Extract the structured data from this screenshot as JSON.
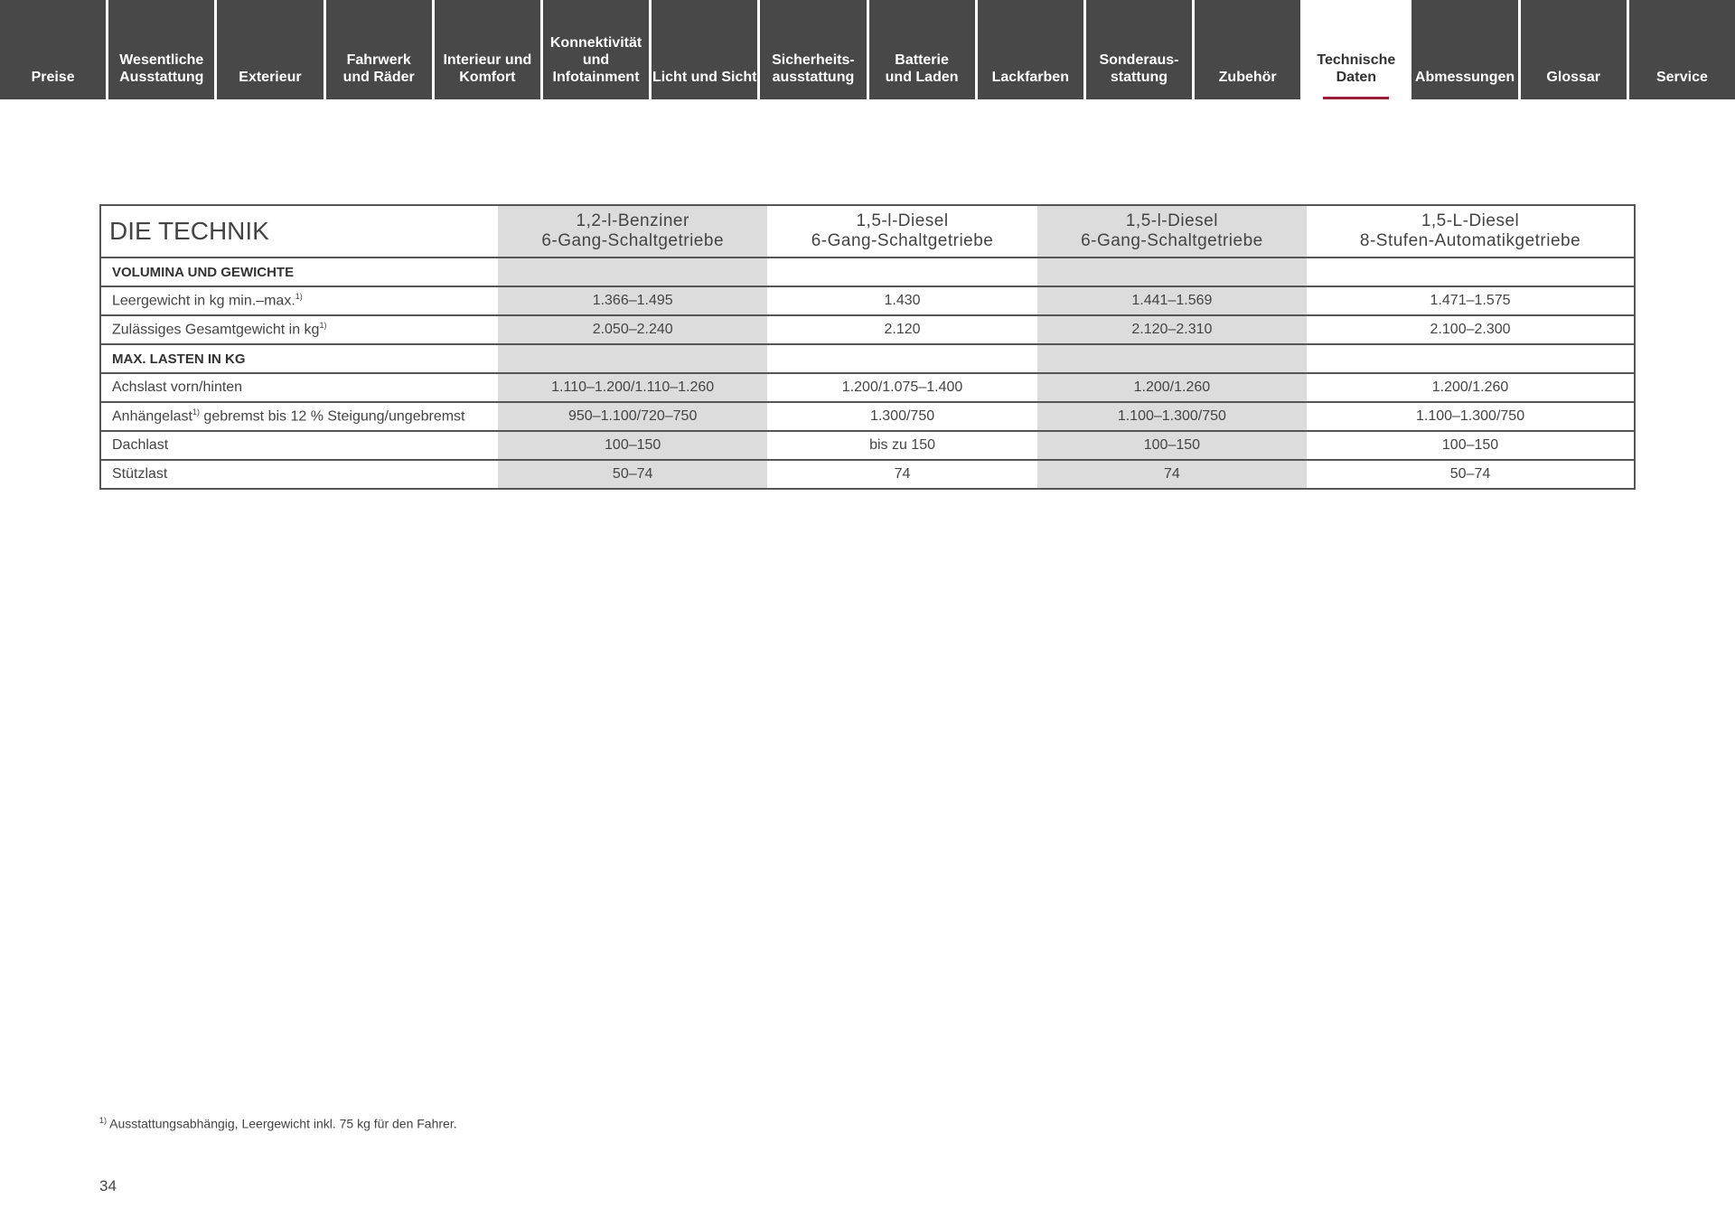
{
  "nav": {
    "tabs": [
      "Preise",
      "Wesentliche\nAusstattung",
      "Exterieur",
      "Fahrwerk\nund Räder",
      "Interieur und\nKomfort",
      "Konnektivität\nund\nInfotainment",
      "Licht und Sicht",
      "Sicherheits-\nausstattung",
      "Batterie\nund Laden",
      "Lackfarben",
      "Sonderaus-\nstattung",
      "Zubehör",
      "Technische\nDaten",
      "Abmessungen",
      "Glossar",
      "Service"
    ],
    "active": "Technische\nDaten",
    "accent": "#9b1c36"
  },
  "table": {
    "title": "DIE TECHNIK",
    "columns": [
      [
        "1,2-l-Benziner",
        "6-Gang-Schaltgetriebe"
      ],
      [
        "1,5-l-Diesel",
        "6-Gang-Schaltgetriebe"
      ],
      [
        "1,5-l-Diesel",
        "6-Gang-Schaltgetriebe"
      ],
      [
        "1,5-L-Diesel",
        "8-Stufen-Automatikgetriebe"
      ]
    ],
    "rows": [
      {
        "section": true,
        "label": "VOLUMINA UND GEWICHTE",
        "values": [
          "",
          "",
          "",
          ""
        ]
      },
      {
        "label": "Leergewicht in kg min.–max.",
        "sup": "1)",
        "values": [
          "1.366–1.495",
          "1.430",
          "1.441–1.569",
          "1.471–1.575"
        ]
      },
      {
        "label": "Zulässiges Gesamtgewicht in kg",
        "sup": "1)",
        "values": [
          "2.050–2.240",
          "2.120",
          "2.120–2.310",
          "2.100–2.300"
        ]
      },
      {
        "section": true,
        "label": "MAX. LASTEN IN KG",
        "values": [
          "",
          "",
          "",
          ""
        ]
      },
      {
        "label": "Achslast vorn/hinten",
        "values": [
          "1.110–1.200/1.110–1.260",
          "1.200/1.075–1.400",
          "1.200/1.260",
          "1.200/1.260"
        ]
      },
      {
        "label": "Anhängelast",
        "sup": "1)",
        "label_rest": " gebremst bis 12 % Steigung/ungebremst",
        "values": [
          "950–1.100/720–750",
          "1.300/750",
          "1.100–1.300/750",
          "1.100–1.300/750"
        ]
      },
      {
        "label": "Dachlast",
        "values": [
          "100–150",
          "bis zu 150",
          "100–150",
          "100–150"
        ]
      },
      {
        "label": "Stützlast",
        "values": [
          "50–74",
          "74",
          "74",
          "50–74"
        ]
      }
    ]
  },
  "footnote": {
    "sup": "1)",
    "text": " Ausstattungsabhängig, Leergewicht inkl. 75 kg für den Fahrer."
  },
  "page_number": "34"
}
